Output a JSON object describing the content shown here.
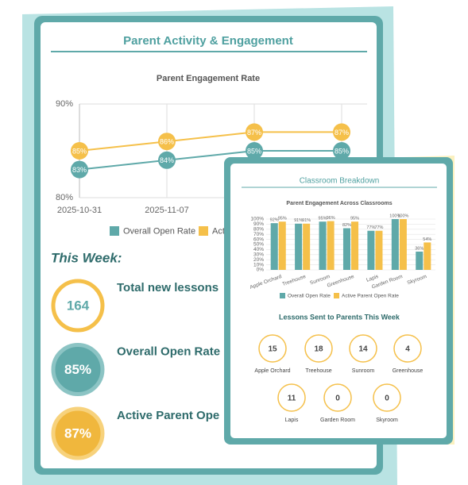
{
  "page1": {
    "title": "Parent Activity & Engagement",
    "week_heading": "This Week:",
    "stats": [
      {
        "value": "164",
        "label": "Total new lessons"
      },
      {
        "value": "85%",
        "label": "Overall Open Rate"
      },
      {
        "value": "87%",
        "label": "Active Parent Ope"
      }
    ]
  },
  "page2": {
    "title": "Classroom Breakdown",
    "lessons_title": "Lessons Sent to Parents This Week",
    "lessons": [
      {
        "name": "Apple Orchard",
        "count": 15
      },
      {
        "name": "Treehouse",
        "count": 18
      },
      {
        "name": "Sunroom",
        "count": 14
      },
      {
        "name": "Greenhouse",
        "count": 4
      },
      {
        "name": "Lapis",
        "count": 11
      },
      {
        "name": "Garden Room",
        "count": 0
      },
      {
        "name": "Skyroom",
        "count": 0
      }
    ]
  },
  "chart_data": [
    {
      "type": "line",
      "title": "Parent Engagement Rate",
      "categories": [
        "2025-10-31",
        "2025-11-07",
        null,
        null
      ],
      "series": [
        {
          "name": "Overall Open Rate",
          "color": "#5fa9a9",
          "values": [
            83,
            84,
            85,
            85
          ],
          "value_labels": [
            "83%",
            "84%",
            "85%",
            "85%"
          ]
        },
        {
          "name": "Active Parent Open Rate",
          "color": "#f5c04a",
          "values": [
            85,
            86,
            87,
            87
          ],
          "value_labels": [
            "85%",
            "86%",
            "87%",
            "87%"
          ]
        }
      ],
      "ylim": [
        80,
        90
      ],
      "yticks": [
        {
          "value": 80,
          "label": "80%"
        },
        {
          "value": 90,
          "label": "90%"
        }
      ],
      "grid": true
    },
    {
      "type": "bar",
      "title": "Parent Engagement Across Classrooms",
      "categories": [
        "Apple Orchard",
        "Treehouse",
        "Sunroom",
        "Greenhouse",
        "Lapis",
        "Garden Room",
        "Skyroom"
      ],
      "series": [
        {
          "name": "Overall Open Rate",
          "color": "#5fa9a9",
          "values": [
            92,
            91,
            95,
            82,
            77,
            100,
            36
          ],
          "value_labels": [
            "92%",
            "91%",
            "95%",
            "82%",
            "77%",
            "100%",
            "36%"
          ]
        },
        {
          "name": "Active Parent Open Rate",
          "color": "#f5c04a",
          "values": [
            95,
            91,
            96,
            95,
            77,
            100,
            54
          ],
          "value_labels": [
            "95%",
            "91%",
            "96%",
            "95%",
            "77%",
            "100%",
            "54%"
          ]
        }
      ],
      "ylim": [
        0,
        100
      ],
      "yticks": [
        {
          "value": 0,
          "label": "0%"
        },
        {
          "value": 10,
          "label": "10%"
        },
        {
          "value": 20,
          "label": "20%"
        },
        {
          "value": 30,
          "label": "30%"
        },
        {
          "value": 40,
          "label": "40%"
        },
        {
          "value": 50,
          "label": "50%"
        },
        {
          "value": 60,
          "label": "60%"
        },
        {
          "value": 70,
          "label": "70%"
        },
        {
          "value": 80,
          "label": "80%"
        },
        {
          "value": 90,
          "label": "90%"
        },
        {
          "value": 100,
          "label": "100%"
        }
      ],
      "grid": true
    }
  ]
}
